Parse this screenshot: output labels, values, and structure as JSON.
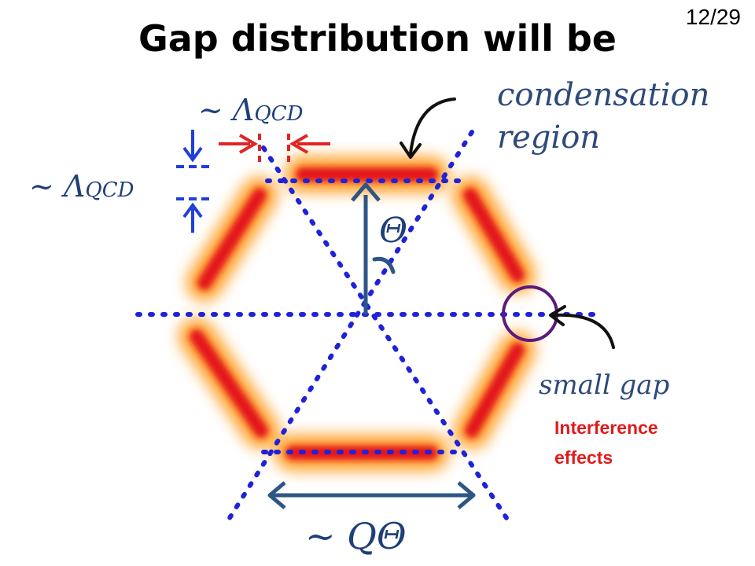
{
  "slide": {
    "title": "Gap distribution will be",
    "page": "12/29"
  },
  "labels": {
    "condensation_line1": "condensation",
    "condensation_line2": "region",
    "lambda_prefix": "~ Λ",
    "lambda_sub": "QCD",
    "theta": "Θ",
    "q_theta": "~ QΘ",
    "small_gap": "small gap",
    "interference_line1": "Interference",
    "interference_line2": "effects"
  },
  "colors": {
    "band_core": "#e01a14",
    "band_glow": "#ff9a1f",
    "dotted_line": "#1f22d8",
    "navy_arrow": "#2d5586",
    "red_arrow": "#e02424",
    "circle": "#5c1a7a"
  }
}
